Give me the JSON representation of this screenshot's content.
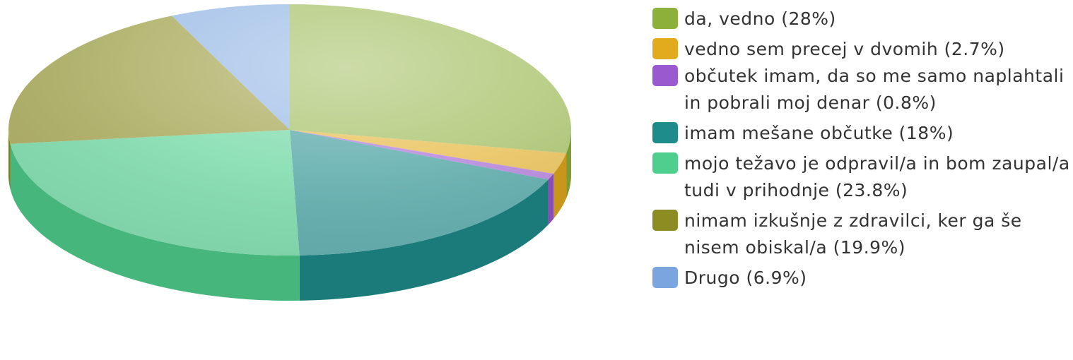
{
  "chart_data": {
    "type": "pie",
    "three_d": true,
    "legend_position": "right",
    "slices": [
      {
        "label": "da, vedno (28%)",
        "value": 28,
        "color": "#8db03b"
      },
      {
        "label": "vedno sem precej v dvomih (2.7%)",
        "value": 2.7,
        "color": "#e2ab1d"
      },
      {
        "label": "občutek imam, da so me samo naplahtali in pobrali moj denar (0.8%)",
        "value": 0.8,
        "color": "#9b59d0"
      },
      {
        "label": "imam mešane občutke (18%)",
        "value": 18,
        "color": "#1f8c8c"
      },
      {
        "label": "mojo težavo je odpravil/a in bom zaupal/a tudi v prihodnje (23.8%)",
        "value": 23.8,
        "color": "#4fcf8e"
      },
      {
        "label": "nimam izkušnje z zdravilci, ker ga še nisem obiskal/a (19.9%)",
        "value": 19.9,
        "color": "#8c8c23"
      },
      {
        "label": "Drugo (6.9%)",
        "value": 6.9,
        "color": "#7aa5df"
      }
    ]
  }
}
